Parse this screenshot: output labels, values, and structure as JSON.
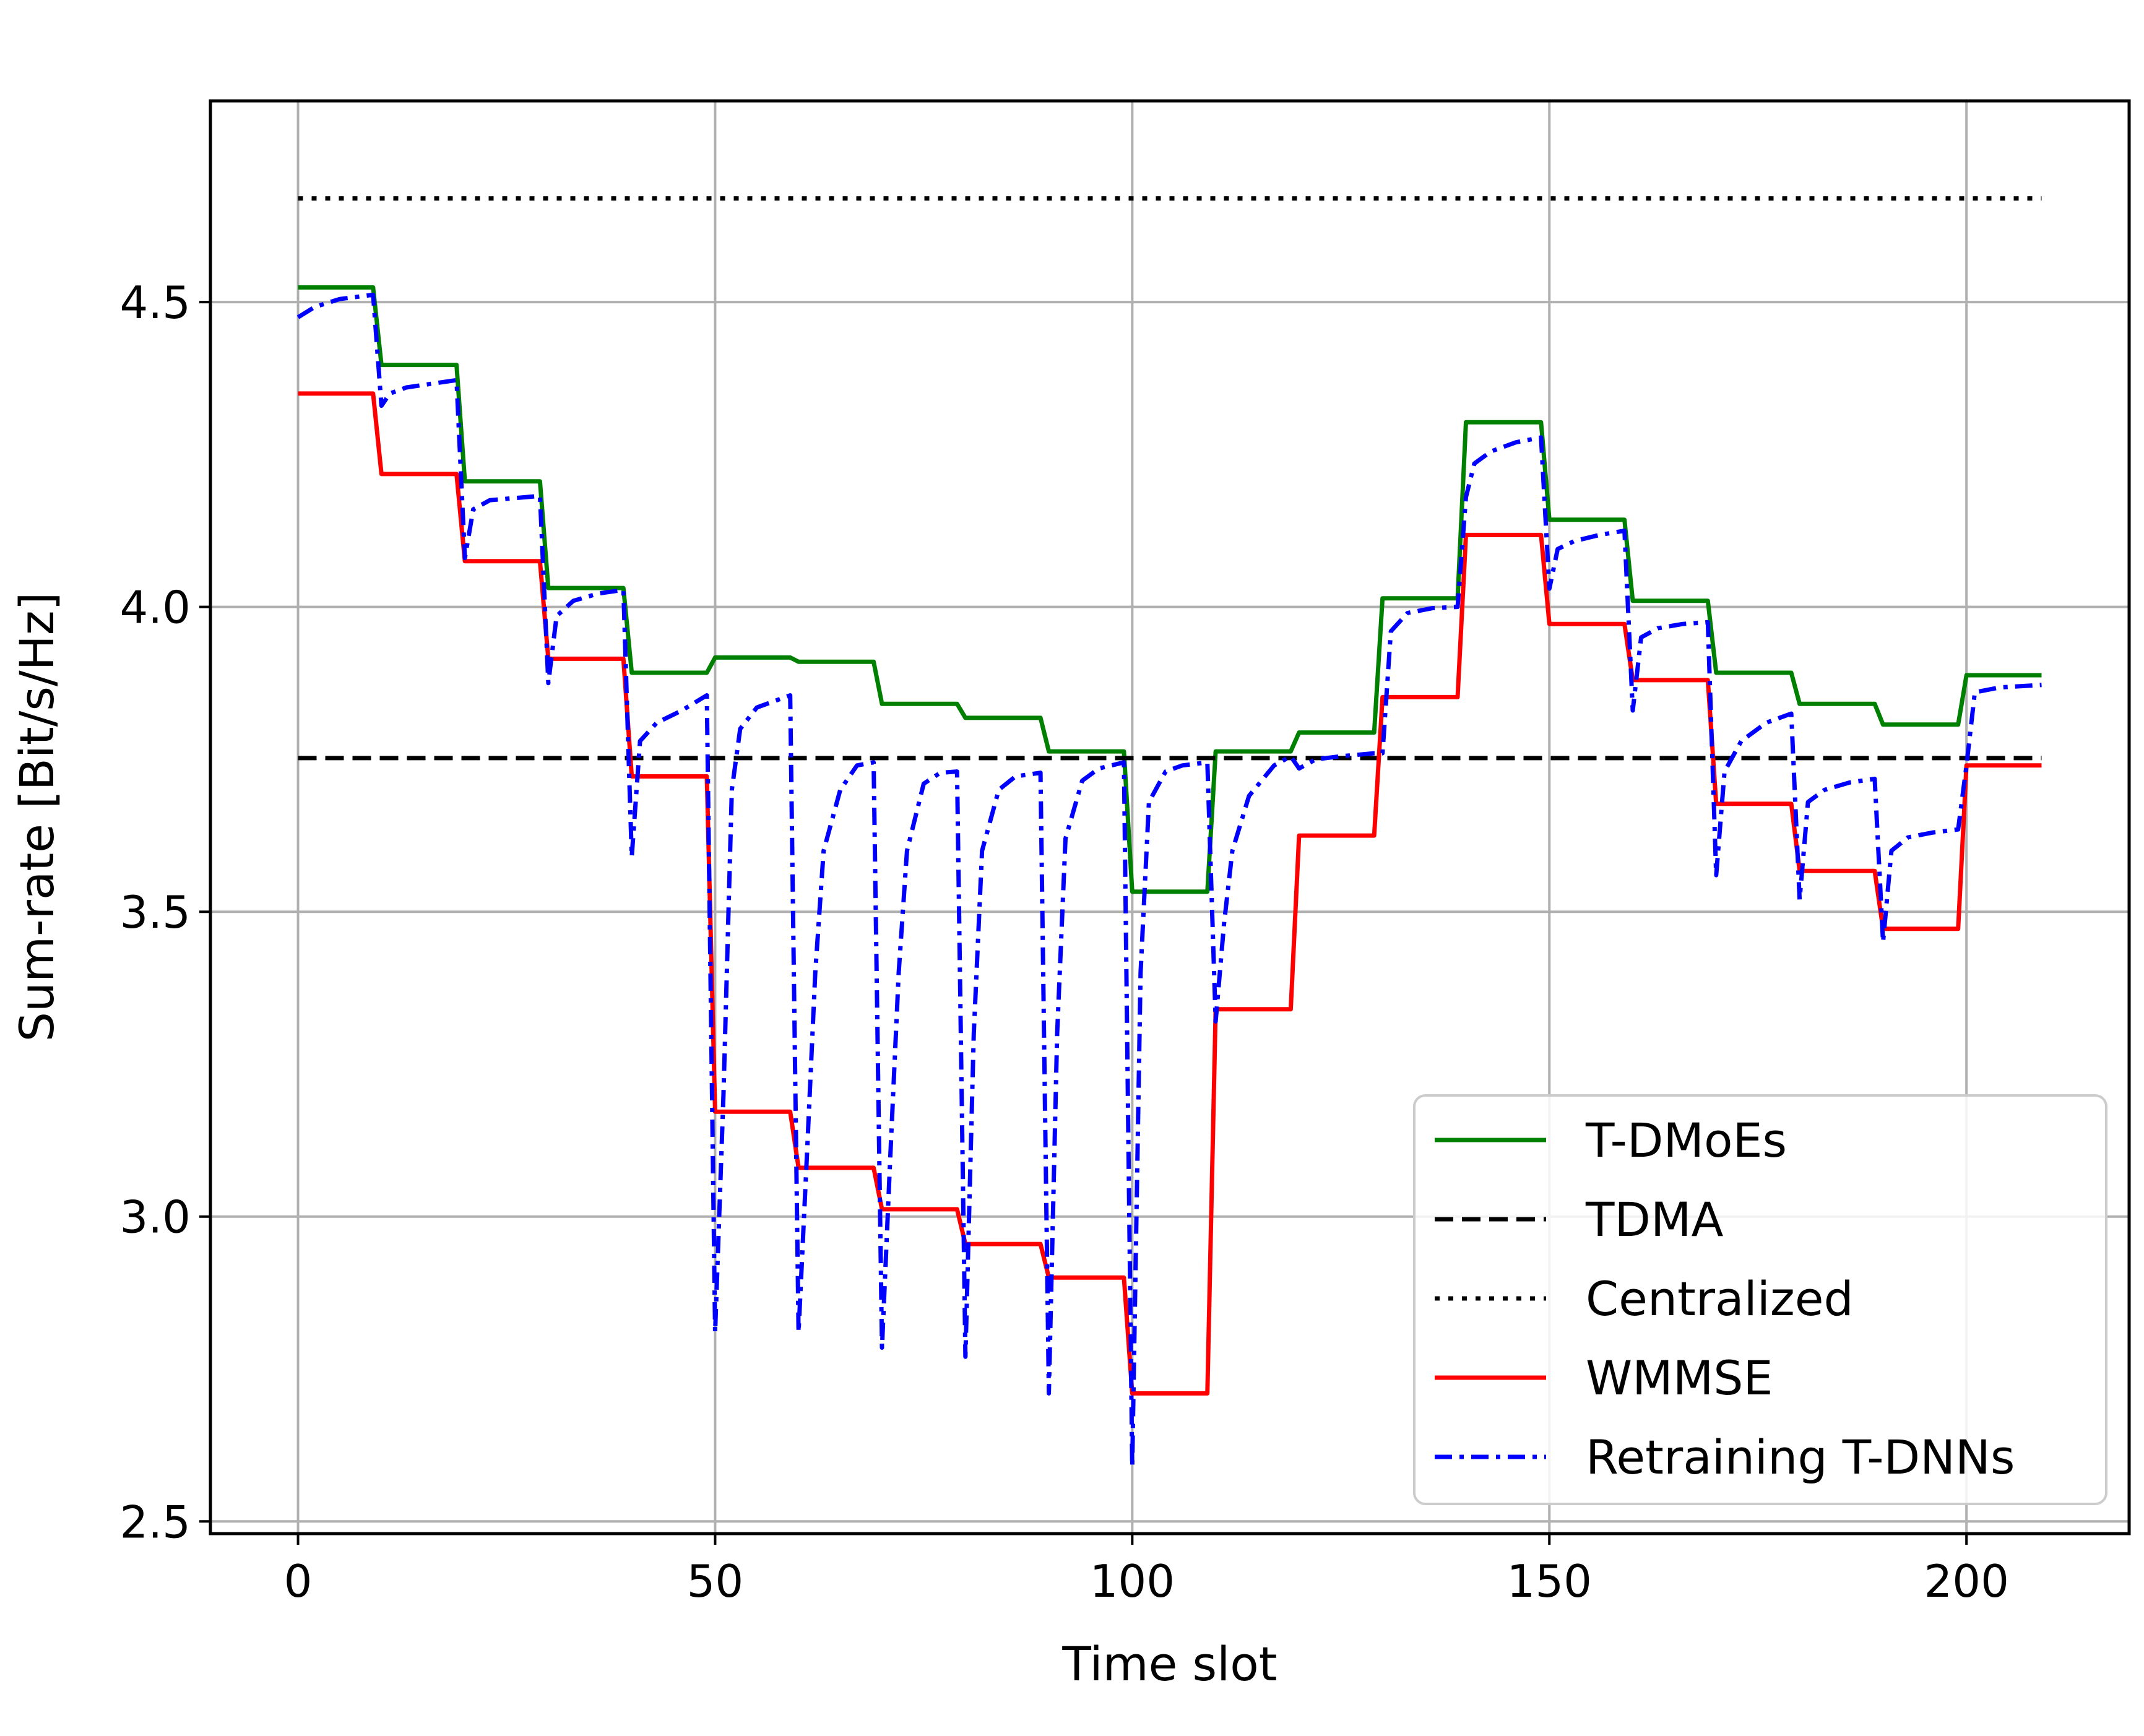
{
  "chart_data": {
    "type": "line",
    "title": "",
    "xlabel": "Time slot",
    "ylabel": "Sum-rate [Bit/s/Hz]",
    "xlim": [
      -10.5,
      219.5
    ],
    "ylim": [
      2.48,
      4.83
    ],
    "xticks": [
      0,
      50,
      100,
      150,
      200
    ],
    "xtick_labels": [
      "0",
      "50",
      "100",
      "150",
      "200"
    ],
    "yticks": [
      2.5,
      3.0,
      3.5,
      4.0,
      4.5
    ],
    "ytick_labels": [
      "2.5",
      "3.0",
      "3.5",
      "4.0",
      "4.5"
    ],
    "grid": true,
    "legend_position": "lower-right",
    "series": [
      {
        "name": "T-DMoEs",
        "color": "#008000",
        "style": "solid",
        "points": [
          [
            0,
            4.524
          ],
          [
            9,
            4.524
          ],
          [
            10,
            4.397
          ],
          [
            19,
            4.397
          ],
          [
            20,
            4.206
          ],
          [
            29,
            4.206
          ],
          [
            30,
            4.031
          ],
          [
            39,
            4.031
          ],
          [
            40,
            3.892
          ],
          [
            49,
            3.892
          ],
          [
            50,
            3.917
          ],
          [
            59,
            3.917
          ],
          [
            60,
            3.91
          ],
          [
            69,
            3.91
          ],
          [
            70,
            3.841
          ],
          [
            79,
            3.841
          ],
          [
            80,
            3.818
          ],
          [
            89,
            3.818
          ],
          [
            90,
            3.763
          ],
          [
            99,
            3.763
          ],
          [
            100,
            3.533
          ],
          [
            109,
            3.533
          ],
          [
            110,
            3.763
          ],
          [
            119,
            3.763
          ],
          [
            120,
            3.794
          ],
          [
            129,
            3.794
          ],
          [
            130,
            4.014
          ],
          [
            139,
            4.014
          ],
          [
            140,
            4.303
          ],
          [
            149,
            4.303
          ],
          [
            150,
            4.143
          ],
          [
            159,
            4.143
          ],
          [
            160,
            4.01
          ],
          [
            169,
            4.01
          ],
          [
            170,
            3.892
          ],
          [
            179,
            3.892
          ],
          [
            180,
            3.841
          ],
          [
            189,
            3.841
          ],
          [
            190,
            3.807
          ],
          [
            199,
            3.807
          ],
          [
            200,
            3.888
          ],
          [
            209,
            3.888
          ]
        ]
      },
      {
        "name": "TDMA",
        "color": "#000000",
        "style": "dashed",
        "points": [
          [
            0,
            3.752
          ],
          [
            209,
            3.752
          ]
        ]
      },
      {
        "name": "Centralized",
        "color": "#000000",
        "style": "dotted",
        "points": [
          [
            0,
            4.67
          ],
          [
            209,
            4.67
          ]
        ]
      },
      {
        "name": "WMMSE",
        "color": "#ff0000",
        "style": "solid",
        "points": [
          [
            0,
            4.35
          ],
          [
            9,
            4.35
          ],
          [
            10,
            4.218
          ],
          [
            19,
            4.218
          ],
          [
            20,
            4.075
          ],
          [
            29,
            4.075
          ],
          [
            30,
            3.915
          ],
          [
            39,
            3.915
          ],
          [
            40,
            3.722
          ],
          [
            49,
            3.722
          ],
          [
            50,
            3.172
          ],
          [
            59,
            3.172
          ],
          [
            60,
            3.08
          ],
          [
            69,
            3.08
          ],
          [
            70,
            3.012
          ],
          [
            79,
            3.012
          ],
          [
            80,
            2.955
          ],
          [
            89,
            2.955
          ],
          [
            90,
            2.9
          ],
          [
            99,
            2.9
          ],
          [
            100,
            2.71
          ],
          [
            109,
            2.71
          ],
          [
            110,
            3.34
          ],
          [
            119,
            3.34
          ],
          [
            120,
            3.625
          ],
          [
            129,
            3.625
          ],
          [
            130,
            3.852
          ],
          [
            139,
            3.852
          ],
          [
            140,
            4.118
          ],
          [
            149,
            4.118
          ],
          [
            150,
            3.972
          ],
          [
            159,
            3.972
          ],
          [
            160,
            3.88
          ],
          [
            169,
            3.88
          ],
          [
            170,
            3.677
          ],
          [
            179,
            3.677
          ],
          [
            180,
            3.567
          ],
          [
            189,
            3.567
          ],
          [
            190,
            3.472
          ],
          [
            199,
            3.472
          ],
          [
            200,
            3.74
          ],
          [
            209,
            3.74
          ]
        ]
      },
      {
        "name": "Retraining T-DNNs",
        "color": "#0000ff",
        "style": "dashdot",
        "points": [
          [
            0,
            4.475
          ],
          [
            2,
            4.492
          ],
          [
            5,
            4.505
          ],
          [
            9,
            4.512
          ],
          [
            10,
            4.33
          ],
          [
            11,
            4.35
          ],
          [
            13,
            4.36
          ],
          [
            19,
            4.372
          ],
          [
            20,
            4.08
          ],
          [
            21,
            4.16
          ],
          [
            23,
            4.175
          ],
          [
            29,
            4.182
          ],
          [
            30,
            3.875
          ],
          [
            31,
            3.985
          ],
          [
            33,
            4.01
          ],
          [
            36,
            4.022
          ],
          [
            39,
            4.028
          ],
          [
            40,
            3.59
          ],
          [
            41,
            3.78
          ],
          [
            43,
            3.81
          ],
          [
            46,
            3.83
          ],
          [
            49,
            3.855
          ],
          [
            50,
            2.81
          ],
          [
            51,
            3.2
          ],
          [
            52,
            3.7
          ],
          [
            53,
            3.8
          ],
          [
            55,
            3.835
          ],
          [
            59,
            3.855
          ],
          [
            60,
            2.81
          ],
          [
            61,
            3.1
          ],
          [
            62,
            3.4
          ],
          [
            63,
            3.6
          ],
          [
            65,
            3.7
          ],
          [
            67,
            3.74
          ],
          [
            69,
            3.745
          ],
          [
            70,
            2.785
          ],
          [
            71,
            3.1
          ],
          [
            72,
            3.4
          ],
          [
            73,
            3.6
          ],
          [
            75,
            3.71
          ],
          [
            77,
            3.728
          ],
          [
            79,
            3.73
          ],
          [
            80,
            2.77
          ],
          [
            81,
            3.3
          ],
          [
            82,
            3.6
          ],
          [
            84,
            3.7
          ],
          [
            86,
            3.722
          ],
          [
            89,
            3.728
          ],
          [
            90,
            2.71
          ],
          [
            91,
            3.3
          ],
          [
            92,
            3.62
          ],
          [
            94,
            3.715
          ],
          [
            96,
            3.735
          ],
          [
            99,
            3.745
          ],
          [
            100,
            2.59
          ],
          [
            101,
            3.4
          ],
          [
            102,
            3.68
          ],
          [
            104,
            3.73
          ],
          [
            106,
            3.74
          ],
          [
            109,
            3.745
          ],
          [
            110,
            3.32
          ],
          [
            111,
            3.48
          ],
          [
            112,
            3.6
          ],
          [
            114,
            3.69
          ],
          [
            117,
            3.74
          ],
          [
            119,
            3.755
          ],
          [
            120,
            3.735
          ],
          [
            122,
            3.75
          ],
          [
            125,
            3.755
          ],
          [
            129,
            3.76
          ],
          [
            130,
            3.76
          ],
          [
            131,
            3.96
          ],
          [
            133,
            3.99
          ],
          [
            136,
            3.998
          ],
          [
            139,
            4.0
          ],
          [
            140,
            4.18
          ],
          [
            141,
            4.235
          ],
          [
            143,
            4.255
          ],
          [
            146,
            4.27
          ],
          [
            149,
            4.278
          ],
          [
            150,
            4.03
          ],
          [
            151,
            4.095
          ],
          [
            153,
            4.108
          ],
          [
            156,
            4.118
          ],
          [
            159,
            4.125
          ],
          [
            160,
            3.83
          ],
          [
            161,
            3.95
          ],
          [
            163,
            3.965
          ],
          [
            166,
            3.972
          ],
          [
            169,
            3.975
          ],
          [
            170,
            3.56
          ],
          [
            171,
            3.73
          ],
          [
            173,
            3.78
          ],
          [
            176,
            3.81
          ],
          [
            179,
            3.825
          ],
          [
            180,
            3.52
          ],
          [
            181,
            3.68
          ],
          [
            183,
            3.7
          ],
          [
            186,
            3.712
          ],
          [
            189,
            3.718
          ],
          [
            190,
            3.45
          ],
          [
            191,
            3.6
          ],
          [
            193,
            3.622
          ],
          [
            196,
            3.63
          ],
          [
            199,
            3.635
          ],
          [
            200,
            3.74
          ],
          [
            201,
            3.86
          ],
          [
            204,
            3.868
          ],
          [
            209,
            3.872
          ]
        ]
      }
    ]
  }
}
